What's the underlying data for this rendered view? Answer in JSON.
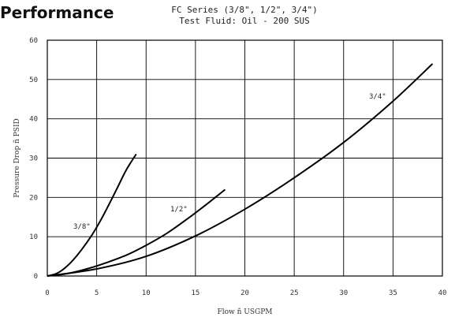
{
  "page": {
    "heading": "Performance",
    "subtitle_line1": "FC Series (3/8\", 1/2\", 3/4\")",
    "subtitle_line2": "Test Fluid: Oil - 200 SUS"
  },
  "chart_data": {
    "type": "line",
    "title": "FC Series (3/8\", 1/2\", 3/4\")",
    "subtitle": "Test Fluid: Oil - 200 SUS",
    "xlabel": "Flow ñ USGPM",
    "ylabel": "Pressure Drop ñ PSID",
    "xlim": [
      0,
      40
    ],
    "ylim": [
      0,
      60
    ],
    "xticks": [
      0,
      5,
      10,
      15,
      20,
      25,
      30,
      35,
      40
    ],
    "yticks": [
      0,
      10,
      20,
      30,
      40,
      50,
      60
    ],
    "grid": true,
    "line_color": "#000000",
    "series": [
      {
        "name": "3/8\"",
        "x": [
          0,
          1,
          2,
          3,
          4,
          5,
          6,
          7,
          8,
          9
        ],
        "y": [
          0,
          0.7,
          2.5,
          5.2,
          8.5,
          12.4,
          17.0,
          22.0,
          27.0,
          31.0
        ]
      },
      {
        "name": "1/2\"",
        "x": [
          0,
          2,
          4,
          6,
          8,
          10,
          12,
          14,
          16,
          18
        ],
        "y": [
          0,
          0.6,
          1.8,
          3.4,
          5.3,
          7.8,
          10.7,
          14.2,
          18.0,
          22.0
        ]
      },
      {
        "name": "3/4\"",
        "x": [
          0,
          5,
          10,
          15,
          20,
          25,
          30,
          35,
          39
        ],
        "y": [
          0,
          1.8,
          5.0,
          10.2,
          17.0,
          25.0,
          34.0,
          44.5,
          54.0
        ]
      }
    ]
  }
}
